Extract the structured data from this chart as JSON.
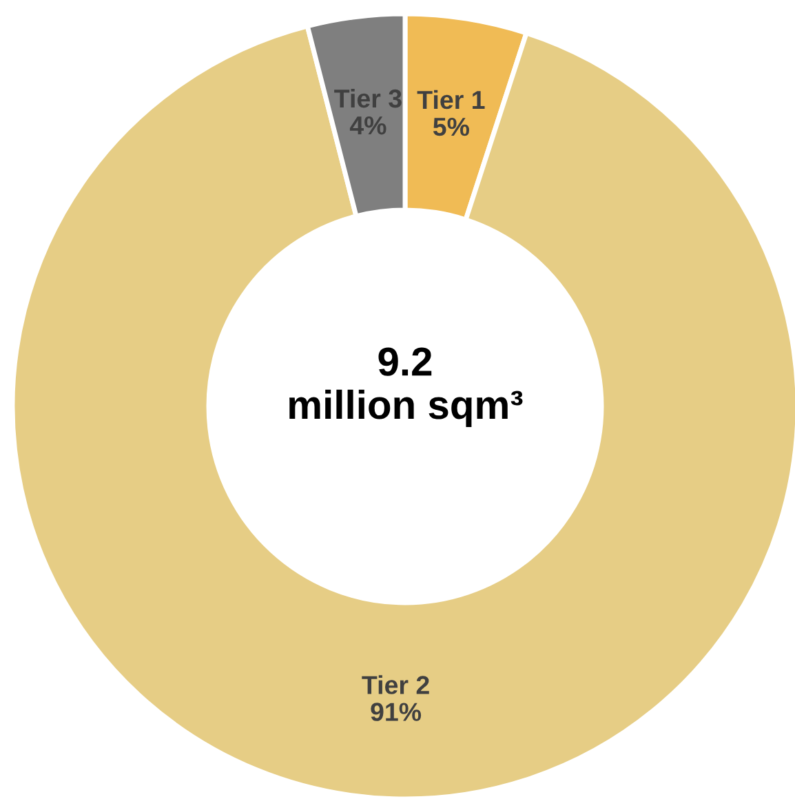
{
  "chart_data": {
    "type": "donut",
    "categories": [
      "Tier 1",
      "Tier 2",
      "Tier 3"
    ],
    "values": [
      5,
      91,
      4
    ],
    "colors": [
      "#f0bb55",
      "#e6cd85",
      "#7f7f7f"
    ],
    "value_labels": [
      "5%",
      "91%",
      "4%"
    ],
    "annotations": [
      "9.2\nmillion sqm³"
    ]
  }
}
